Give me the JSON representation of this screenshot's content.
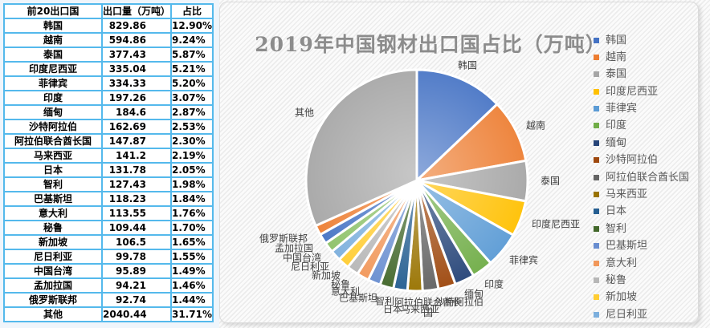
{
  "table": {
    "headers": [
      "前20出口国",
      "出口量（万吨）",
      "占比"
    ],
    "rows": [
      [
        "韩国",
        "829.86",
        "12.90%"
      ],
      [
        "越南",
        "594.86",
        "9.24%"
      ],
      [
        "泰国",
        "377.43",
        "5.87%"
      ],
      [
        "印度尼西亚",
        "335.04",
        "5.21%"
      ],
      [
        "菲律宾",
        "334.33",
        "5.20%"
      ],
      [
        "印度",
        "197.26",
        "3.07%"
      ],
      [
        "缅甸",
        "184.6",
        "2.87%"
      ],
      [
        "沙特阿拉伯",
        "162.69",
        "2.53%"
      ],
      [
        "阿拉伯联合酋长国",
        "147.87",
        "2.30%"
      ],
      [
        "马来西亚",
        "141.2",
        "2.19%"
      ],
      [
        "日本",
        "131.78",
        "2.05%"
      ],
      [
        "智利",
        "127.43",
        "1.98%"
      ],
      [
        "巴基斯坦",
        "118.23",
        "1.84%"
      ],
      [
        "意大利",
        "113.55",
        "1.76%"
      ],
      [
        "秘鲁",
        "109.44",
        "1.70%"
      ],
      [
        "新加坡",
        "106.5",
        "1.65%"
      ],
      [
        "尼日利亚",
        "99.78",
        "1.55%"
      ],
      [
        "中国台湾",
        "95.89",
        "1.49%"
      ],
      [
        "孟加拉国",
        "94.21",
        "1.46%"
      ],
      [
        "俄罗斯联邦",
        "92.74",
        "1.44%"
      ],
      [
        "其他",
        "2040.44",
        "31.71%"
      ]
    ]
  },
  "chart_data": {
    "type": "pie",
    "title": "2019年中国钢材出口国占比（万吨）",
    "categories": [
      "韩国",
      "越南",
      "泰国",
      "印度尼西亚",
      "菲律宾",
      "印度",
      "缅甸",
      "沙特阿拉伯",
      "阿拉伯联合酋长国",
      "马来西亚",
      "日本",
      "智利",
      "巴基斯坦",
      "意大利",
      "秘鲁",
      "新加坡",
      "尼日利亚",
      "中国台湾",
      "孟加拉国",
      "俄罗斯联邦",
      "其他"
    ],
    "values": [
      829.86,
      594.86,
      377.43,
      335.04,
      334.33,
      197.26,
      184.6,
      162.69,
      147.87,
      141.2,
      131.78,
      127.43,
      118.23,
      113.55,
      109.44,
      106.5,
      99.78,
      95.89,
      94.21,
      92.74,
      2040.44
    ],
    "share_labels": [
      "12.90%",
      "9.24%",
      "5.87%",
      "5.21%",
      "5.20%",
      "3.07%",
      "2.87%",
      "2.53%",
      "2.30%",
      "2.19%",
      "2.05%",
      "1.98%",
      "1.84%",
      "1.76%",
      "1.70%",
      "1.65%",
      "1.55%",
      "1.49%",
      "1.46%",
      "1.44%",
      "31.71%"
    ],
    "colors": [
      "#4472C4",
      "#ED7D31",
      "#A5A5A5",
      "#FFC000",
      "#5B9BD5",
      "#70AD47",
      "#264478",
      "#9E480E",
      "#636363",
      "#997300",
      "#255E91",
      "#43682B",
      "#698ED0",
      "#F1975A",
      "#B7B7B7",
      "#FFCD33",
      "#7CAFDD",
      "#8CC168",
      "#4472C4",
      "#ED7D31",
      "#A5A5A5"
    ],
    "slice_start": "12-o-clock-clockwise",
    "legend_position": "right",
    "legend_visible_items": [
      "韩国",
      "越南",
      "泰国",
      "印度尼西亚",
      "菲律宾",
      "印度",
      "缅甸",
      "沙特阿拉伯",
      "阿拉伯联合酋长国",
      "马来西亚",
      "日本",
      "智利",
      "巴基斯坦",
      "意大利",
      "秘鲁",
      "新加坡",
      "尼日利亚"
    ]
  },
  "theme": {
    "table_border": "#54B9EC",
    "title_color": "#8C8C8C",
    "pie_label_color": "#404040",
    "legend_text_color": "#595959"
  }
}
